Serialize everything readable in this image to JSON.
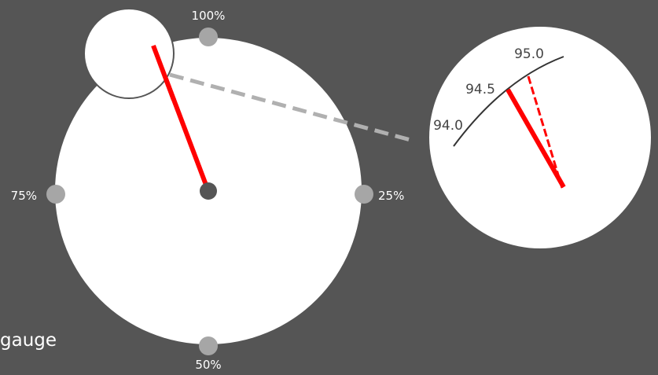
{
  "label": "gauge",
  "colors": {
    "background": "#555555",
    "dial": "#ffffff",
    "marker": "#a6a6a6",
    "needle": "#ff0000",
    "hub": "#555555",
    "connector": "#b0b0b0",
    "arc": "#333333"
  },
  "gauge": {
    "value_percent": 94.6,
    "ticks": [
      {
        "label": "100%",
        "percent": 100
      },
      {
        "label": "25%",
        "percent": 25
      },
      {
        "label": "50%",
        "percent": 50
      },
      {
        "label": "75%",
        "percent": 75
      }
    ]
  },
  "zoom": {
    "ticks": [
      {
        "label": "94.0",
        "value": 94.0
      },
      {
        "label": "94.5",
        "value": 94.5
      },
      {
        "label": "95.0",
        "value": 95.0
      }
    ],
    "needle_value": 94.6
  }
}
